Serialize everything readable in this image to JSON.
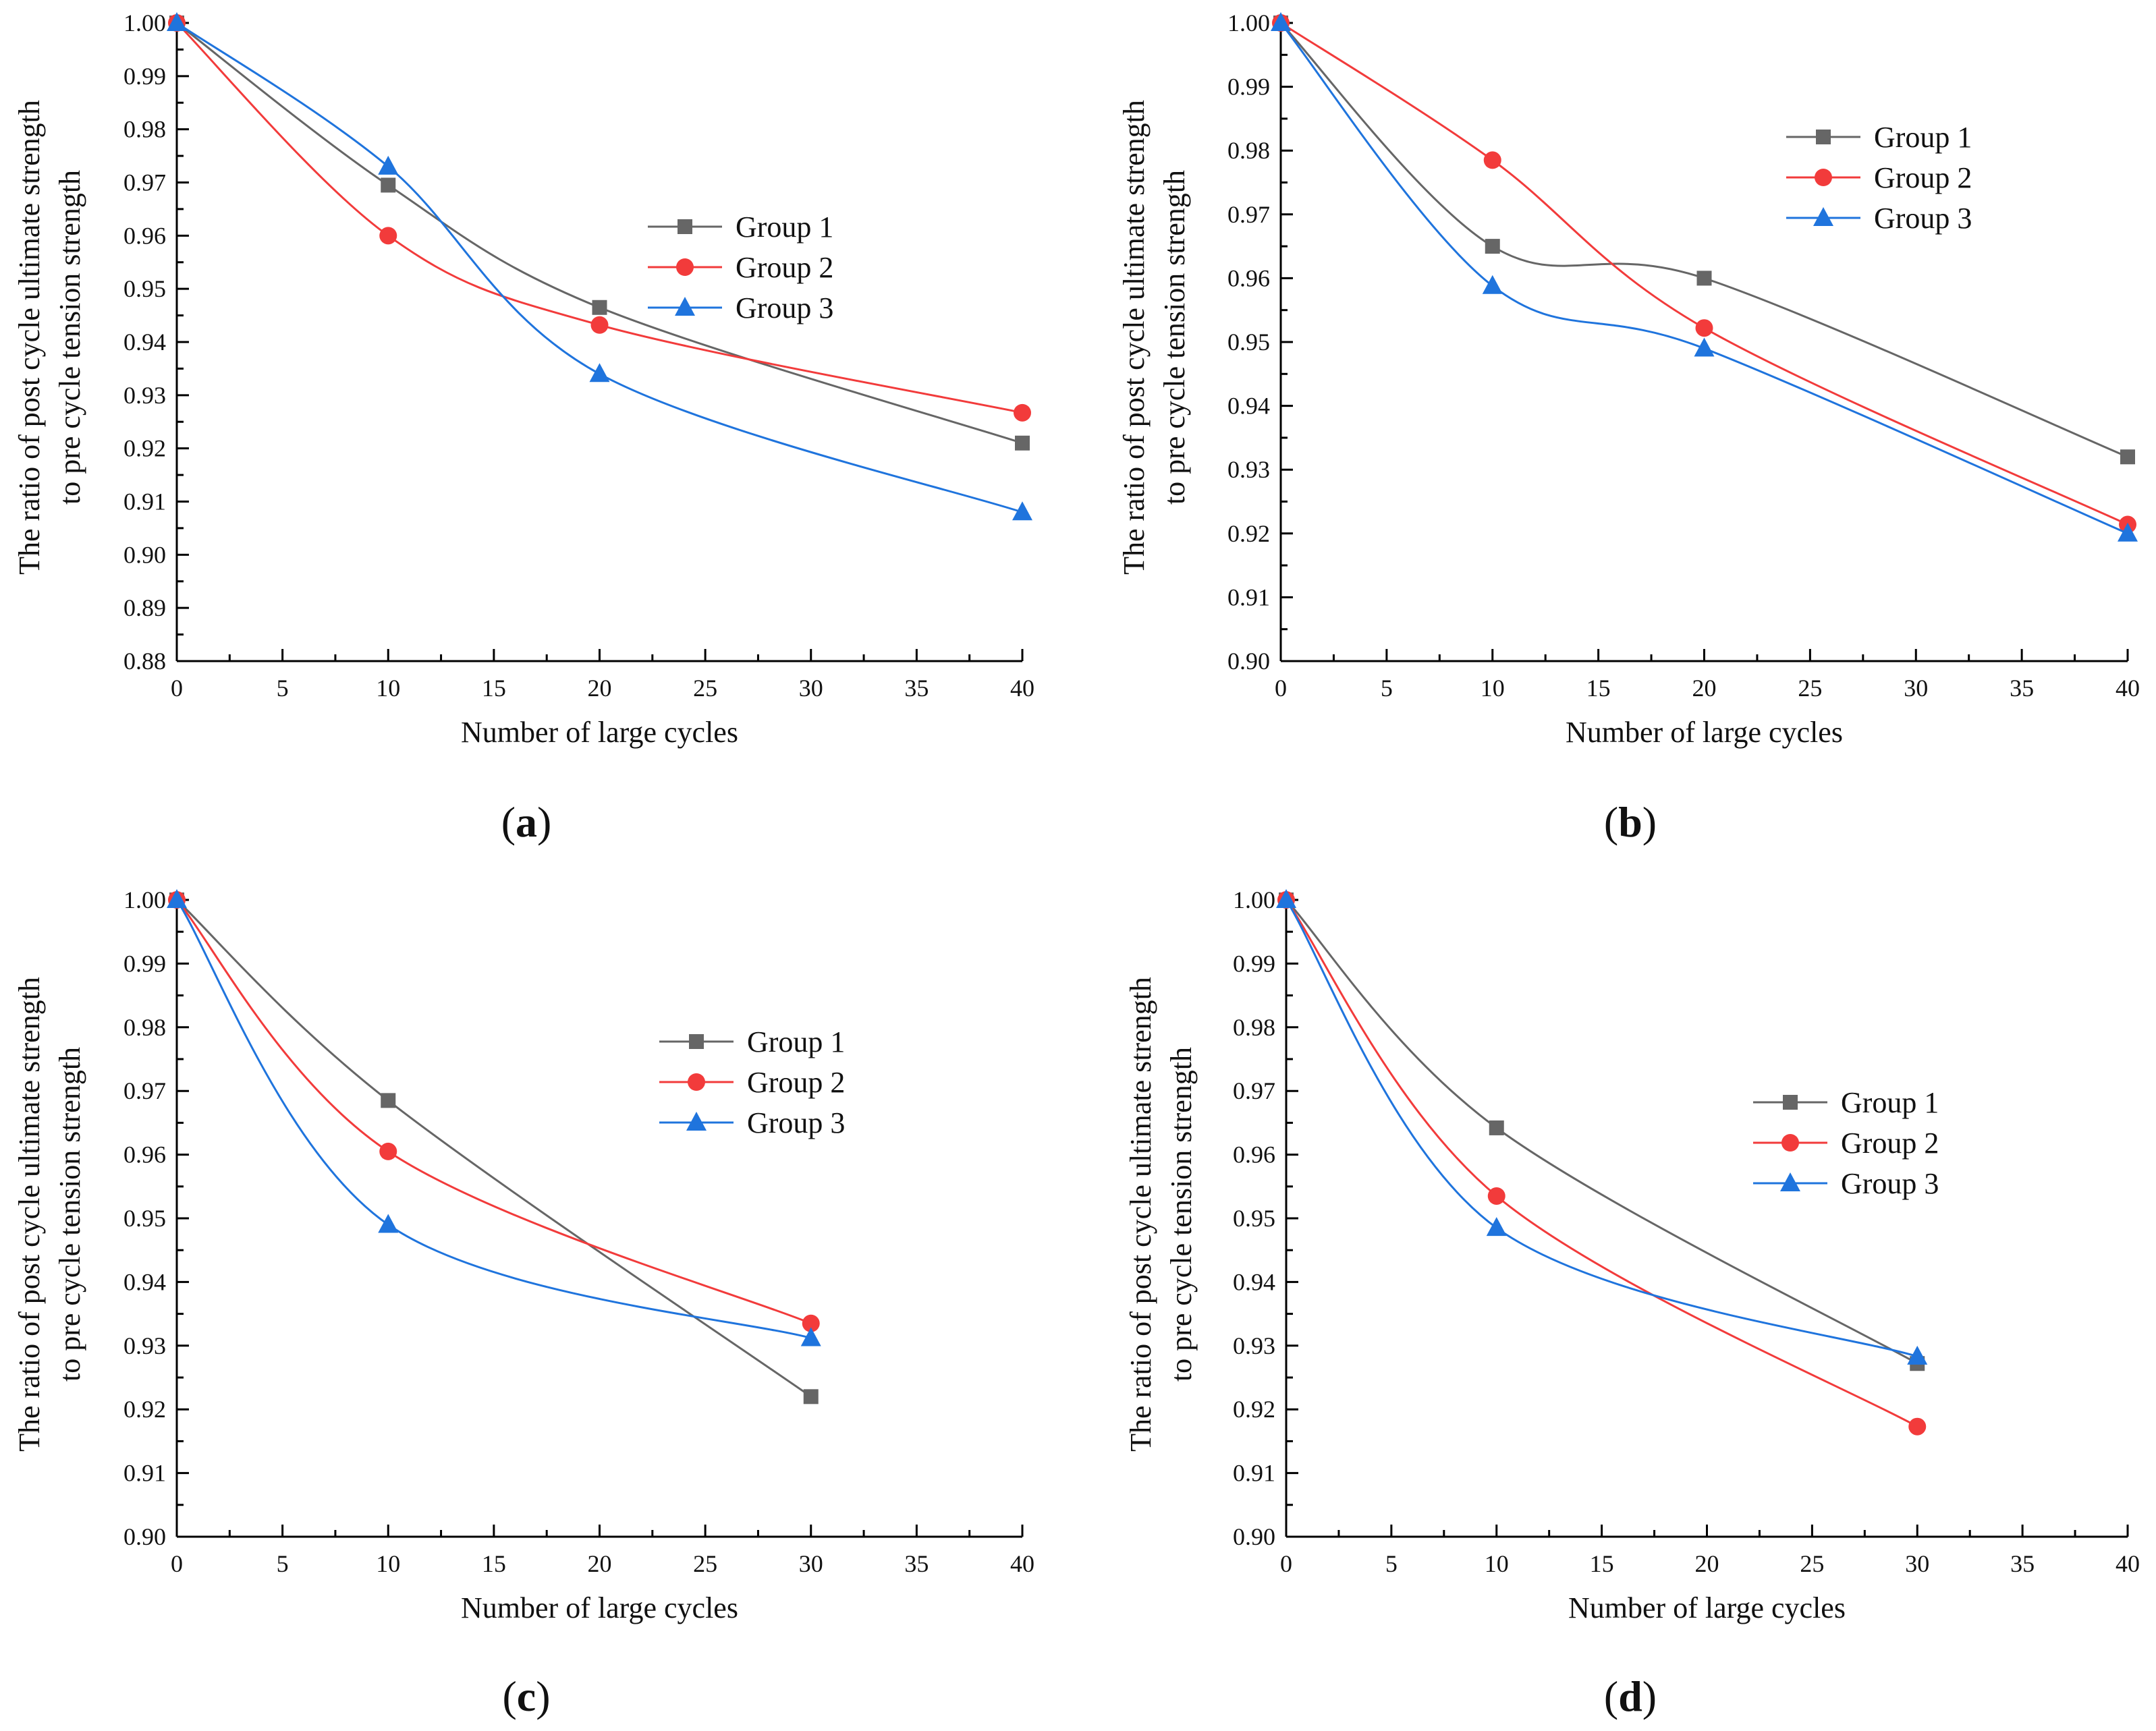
{
  "colors": {
    "Group 1": "#666666",
    "Group 2": "#f23b3b",
    "Group 3": "#1f74dd"
  },
  "chart_data": [
    {
      "type": "line",
      "panel_label": "a",
      "xlabel": "Number of large cycles",
      "ylabel": [
        "The ratio of post cycle ultimate strength",
        "to pre cycle tension strength"
      ],
      "xlim": [
        0,
        40
      ],
      "ylim": [
        0.88,
        1.0
      ],
      "xticks": [
        "0",
        "5",
        "10",
        "15",
        "20",
        "25",
        "30",
        "35",
        "40"
      ],
      "yticks": [
        "0.88",
        "0.89",
        "0.90",
        "0.91",
        "0.92",
        "0.93",
        "0.94",
        "0.95",
        "0.96",
        "0.97",
        "0.98",
        "0.99",
        "1.00"
      ],
      "legend_position": "center-right",
      "series": [
        {
          "name": "Group 1",
          "marker": "square",
          "x": [
            0,
            10,
            20,
            40
          ],
          "y": [
            1.0,
            0.9695,
            0.9465,
            0.921
          ]
        },
        {
          "name": "Group 2",
          "marker": "circle",
          "x": [
            0,
            10,
            20,
            40
          ],
          "y": [
            1.0,
            0.96,
            0.9432,
            0.9267
          ]
        },
        {
          "name": "Group 3",
          "marker": "triangle",
          "x": [
            0,
            10,
            20,
            40
          ],
          "y": [
            1.0,
            0.973,
            0.934,
            0.908
          ]
        }
      ]
    },
    {
      "type": "line",
      "panel_label": "b",
      "xlabel": "Number of large cycles",
      "ylabel": [
        "The ratio of post cycle ultimate strength",
        "to pre cycle tension strength"
      ],
      "xlim": [
        0,
        40
      ],
      "ylim": [
        0.9,
        1.0
      ],
      "xticks": [
        "0",
        "5",
        "10",
        "15",
        "20",
        "25",
        "30",
        "35",
        "40"
      ],
      "yticks": [
        "0.90",
        "0.91",
        "0.92",
        "0.93",
        "0.94",
        "0.95",
        "0.96",
        "0.97",
        "0.98",
        "0.99",
        "1.00"
      ],
      "legend_position": "top-right",
      "series": [
        {
          "name": "Group 1",
          "marker": "square",
          "x": [
            0,
            10,
            20,
            40
          ],
          "y": [
            1.0,
            0.965,
            0.96,
            0.932
          ]
        },
        {
          "name": "Group 2",
          "marker": "circle",
          "x": [
            0,
            10,
            20,
            40
          ],
          "y": [
            1.0,
            0.9785,
            0.9522,
            0.9214
          ]
        },
        {
          "name": "Group 3",
          "marker": "triangle",
          "x": [
            0,
            10,
            20,
            40
          ],
          "y": [
            1.0,
            0.9588,
            0.949,
            0.92
          ]
        }
      ]
    },
    {
      "type": "line",
      "panel_label": "c",
      "xlabel": "Number of large cycles",
      "ylabel": [
        "The ratio of post cycle ultimate strength",
        "to pre cycle tension strength"
      ],
      "xlim": [
        0,
        40
      ],
      "ylim": [
        0.9,
        1.0
      ],
      "xticks": [
        "0",
        "5",
        "10",
        "15",
        "20",
        "25",
        "30",
        "35",
        "40"
      ],
      "yticks": [
        "0.90",
        "0.91",
        "0.92",
        "0.93",
        "0.94",
        "0.95",
        "0.96",
        "0.97",
        "0.98",
        "0.99",
        "1.00"
      ],
      "legend_position": "center-right",
      "series": [
        {
          "name": "Group 1",
          "marker": "square",
          "x": [
            0,
            10,
            30
          ],
          "y": [
            1.0,
            0.9685,
            0.922
          ]
        },
        {
          "name": "Group 2",
          "marker": "circle",
          "x": [
            0,
            10,
            30
          ],
          "y": [
            1.0,
            0.9605,
            0.9335
          ]
        },
        {
          "name": "Group 3",
          "marker": "triangle",
          "x": [
            0,
            10,
            30
          ],
          "y": [
            1.0,
            0.949,
            0.9312
          ]
        }
      ]
    },
    {
      "type": "line",
      "panel_label": "d",
      "xlabel": "Number of large cycles",
      "ylabel": [
        "The ratio of post cycle ultimate strength",
        "to pre cycle tension strength"
      ],
      "xlim": [
        0,
        40
      ],
      "ylim": [
        0.9,
        1.0
      ],
      "xticks": [
        "0",
        "5",
        "10",
        "15",
        "20",
        "25",
        "30",
        "35",
        "40"
      ],
      "yticks": [
        "0.90",
        "0.91",
        "0.92",
        "0.93",
        "0.94",
        "0.95",
        "0.96",
        "0.97",
        "0.98",
        "0.99",
        "1.00"
      ],
      "legend_position": "center-right",
      "series": [
        {
          "name": "Group 1",
          "marker": "square",
          "x": [
            0,
            10,
            30
          ],
          "y": [
            1.0,
            0.9642,
            0.9272
          ]
        },
        {
          "name": "Group 2",
          "marker": "circle",
          "x": [
            0,
            10,
            30
          ],
          "y": [
            1.0,
            0.9535,
            0.9173
          ]
        },
        {
          "name": "Group 3",
          "marker": "triangle",
          "x": [
            0,
            10,
            30
          ],
          "y": [
            1.0,
            0.9485,
            0.9283
          ]
        }
      ]
    }
  ]
}
